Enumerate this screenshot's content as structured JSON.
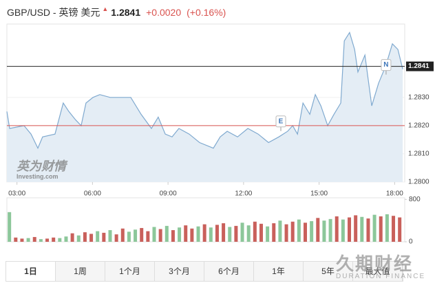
{
  "header": {
    "title": "GBP/USD - 英镑 美元",
    "price": 1.2841,
    "change": "+0.0020",
    "change_pct": "(+0.16%)"
  },
  "chart_data": [
    {
      "type": "area",
      "x": [
        2.6,
        2.71,
        3.28,
        3.56,
        3.83,
        4.02,
        4.51,
        4.84,
        5.06,
        5.33,
        5.55,
        5.74,
        6.02,
        6.29,
        6.7,
        7.11,
        7.52,
        7.93,
        8.34,
        8.61,
        8.89,
        9.16,
        9.43,
        9.84,
        10.25,
        10.8,
        11.07,
        11.35,
        11.76,
        12.17,
        12.58,
        12.99,
        13.4,
        13.75,
        13.95,
        14.14,
        14.36,
        14.63,
        14.85,
        15.07,
        15.34,
        15.59,
        15.86,
        16,
        16.21,
        16.41,
        16.54,
        16.82,
        17.09,
        17.36,
        17.64,
        17.91,
        18.13,
        18.32
      ],
      "series": [
        {
          "color": "#7fa9cf",
          "fill": "#e4edf5",
          "values": [
            1.2825,
            1.2819,
            1.282,
            1.2817,
            1.2812,
            1.2816,
            1.2817,
            1.2828,
            1.2825,
            1.2822,
            1.282,
            1.2828,
            1.283,
            1.2831,
            1.283,
            1.283,
            1.283,
            1.2824,
            1.2819,
            1.2823,
            1.2817,
            1.2816,
            1.2819,
            1.2817,
            1.2814,
            1.2812,
            1.2816,
            1.2818,
            1.2816,
            1.2819,
            1.2817,
            1.2814,
            1.2816,
            1.2818,
            1.282,
            1.2817,
            1.2828,
            1.2824,
            1.2831,
            1.2827,
            1.282,
            1.2824,
            1.2828,
            1.285,
            1.2853,
            1.2847,
            1.2839,
            1.2845,
            1.2827,
            1.2835,
            1.2841,
            1.2849,
            1.2847,
            1.284
          ]
        }
      ],
      "xlim": [
        2.6,
        18.4
      ],
      "xticks": [
        {
          "value": 3,
          "label": "03:00"
        },
        {
          "value": 6,
          "label": "06:00"
        },
        {
          "value": 9,
          "label": "09:00"
        },
        {
          "value": 12,
          "label": "12:00"
        },
        {
          "value": 15,
          "label": "15:00"
        },
        {
          "value": 18,
          "label": "18:00"
        }
      ],
      "ylim": [
        1.28,
        1.2856
      ],
      "yticks": [
        {
          "value": 1.28,
          "label": "1.2800"
        },
        {
          "value": 1.281,
          "label": "1.2810"
        },
        {
          "value": 1.282,
          "label": "1.2820"
        },
        {
          "value": 1.283,
          "label": "1.2830"
        }
      ],
      "last_price": 1.2841,
      "last_color": "#222222",
      "prev_close": 1.282,
      "prev_color": "#d9534f",
      "annotations": [
        {
          "label": "E",
          "x": 13.48,
          "y": 1.2821
        },
        {
          "label": "N",
          "x": 17.66,
          "y": 1.2841
        }
      ]
    },
    {
      "type": "bar",
      "x": [
        2.7,
        2.95,
        3.2,
        3.45,
        3.7,
        3.95,
        4.2,
        4.45,
        4.7,
        4.95,
        5.2,
        5.45,
        5.7,
        5.95,
        6.2,
        6.45,
        6.7,
        6.95,
        7.2,
        7.45,
        7.7,
        7.95,
        8.2,
        8.45,
        8.7,
        8.95,
        9.2,
        9.45,
        9.7,
        9.95,
        10.2,
        10.45,
        10.7,
        10.95,
        11.2,
        11.45,
        11.7,
        11.95,
        12.2,
        12.45,
        12.7,
        12.95,
        13.2,
        13.45,
        13.7,
        13.95,
        14.2,
        14.45,
        14.7,
        14.95,
        15.2,
        15.45,
        15.7,
        15.95,
        16.2,
        16.45,
        16.7,
        16.95,
        17.2,
        17.45,
        17.7,
        17.95,
        18.2
      ],
      "values": [
        560,
        80,
        60,
        70,
        90,
        50,
        60,
        80,
        70,
        100,
        160,
        120,
        180,
        150,
        200,
        170,
        220,
        140,
        250,
        190,
        230,
        260,
        200,
        280,
        240,
        300,
        220,
        270,
        310,
        250,
        290,
        330,
        270,
        320,
        350,
        280,
        300,
        360,
        310,
        380,
        340,
        290,
        350,
        400,
        330,
        380,
        420,
        360,
        390,
        450,
        400,
        430,
        480,
        420,
        460,
        500,
        470,
        440,
        510,
        480,
        520,
        490,
        460
      ],
      "up": [
        true,
        false,
        false,
        true,
        false,
        true,
        false,
        false,
        true,
        true,
        false,
        true,
        false,
        false,
        true,
        false,
        true,
        false,
        false,
        true,
        true,
        false,
        false,
        true,
        false,
        true,
        false,
        true,
        false,
        false,
        true,
        false,
        true,
        false,
        false,
        true,
        false,
        true,
        true,
        false,
        false,
        true,
        false,
        true,
        false,
        false,
        true,
        false,
        true,
        false,
        true,
        true,
        false,
        true,
        false,
        false,
        true,
        false,
        true,
        false,
        true,
        false,
        false
      ],
      "up_color": "#8cc79a",
      "down_color": "#c9605b",
      "xlim": [
        2.6,
        18.4
      ],
      "ylim": [
        0,
        830
      ],
      "yticks": [
        0,
        800
      ]
    }
  ],
  "logo": {
    "name": "英为财情",
    "site": "Investing.com"
  },
  "tabs": {
    "items": [
      "1日",
      "1周",
      "1个月",
      "3个月",
      "6个月",
      "1年",
      "5年",
      "最大值"
    ],
    "selected": 0
  },
  "watermark": {
    "name": "久期财经",
    "sub": "DURATION FINANCE"
  }
}
